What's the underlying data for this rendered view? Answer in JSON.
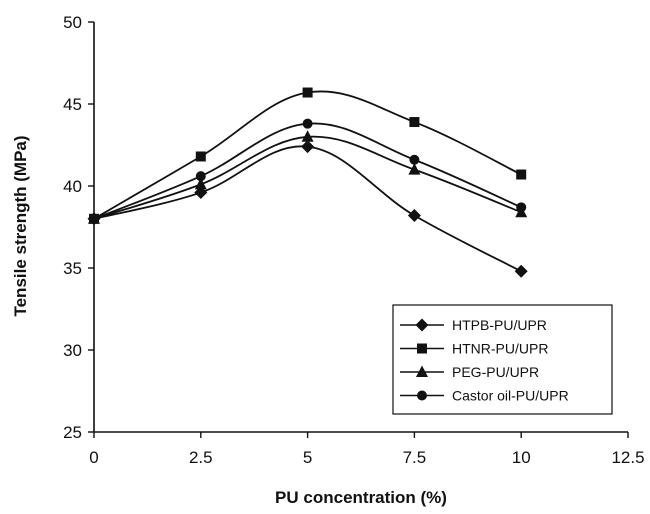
{
  "chart_data": {
    "type": "line",
    "xlabel": "PU concentration (%)",
    "ylabel": "Tensile strength (MPa)",
    "xlim": [
      0,
      12.5
    ],
    "ylim": [
      25,
      50
    ],
    "x_ticks": [
      "0",
      "2.5",
      "5",
      "7.5",
      "10",
      "12.5"
    ],
    "y_ticks": [
      "25",
      "30",
      "35",
      "40",
      "45",
      "50"
    ],
    "x": [
      0,
      2.5,
      5,
      7.5,
      10
    ],
    "grid": false,
    "legend_position": "bottom-right",
    "series": [
      {
        "name": "HTPB-PU/UPR",
        "marker": "diamond",
        "values": [
          38.0,
          39.6,
          42.4,
          38.2,
          34.8
        ]
      },
      {
        "name": "HTNR-PU/UPR",
        "marker": "square",
        "values": [
          38.0,
          41.8,
          45.7,
          43.9,
          40.7
        ]
      },
      {
        "name": "PEG-PU/UPR",
        "marker": "triangle",
        "values": [
          38.0,
          40.1,
          43.0,
          41.0,
          38.4
        ]
      },
      {
        "name": "Castor oil-PU/UPR",
        "marker": "circle",
        "values": [
          38.0,
          40.6,
          43.8,
          41.6,
          38.7
        ]
      }
    ],
    "colors": {
      "line": "#111111",
      "marker": "#111111"
    }
  }
}
